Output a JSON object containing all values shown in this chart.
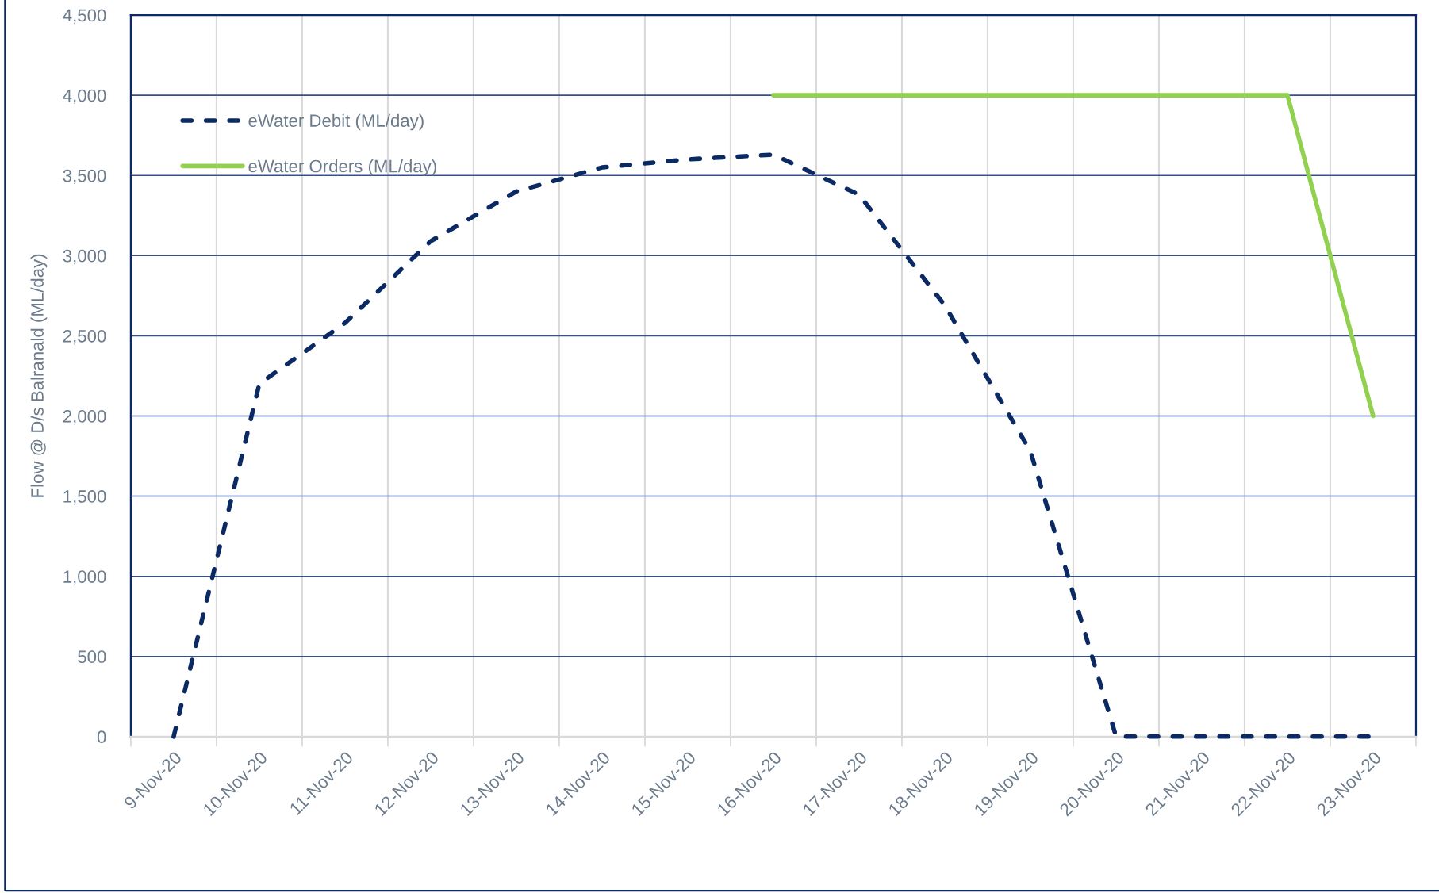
{
  "chart_data": {
    "type": "line",
    "ylabel": "Flow @ D/s Balranald (ML/day)",
    "categories": [
      "9-Nov-20",
      "10-Nov-20",
      "11-Nov-20",
      "12-Nov-20",
      "13-Nov-20",
      "14-Nov-20",
      "15-Nov-20",
      "16-Nov-20",
      "17-Nov-20",
      "18-Nov-20",
      "19-Nov-20",
      "20-Nov-20",
      "21-Nov-20",
      "22-Nov-20",
      "23-Nov-20"
    ],
    "series": [
      {
        "name": "eWater Debit (ML/day)",
        "color": "#0b2a63",
        "line_style": "dashed",
        "values": [
          0,
          2200,
          2580,
          3090,
          3400,
          3550,
          3600,
          3630,
          3380,
          2690,
          1780,
          0,
          0,
          0,
          0
        ]
      },
      {
        "name": "eWater Orders (ML/day)",
        "color": "#92d050",
        "line_style": "solid",
        "values": [
          null,
          null,
          null,
          null,
          null,
          null,
          null,
          4000,
          4000,
          4000,
          4000,
          4000,
          4000,
          4000,
          2000
        ]
      }
    ],
    "ylim": [
      0,
      4500
    ],
    "yticks": [
      0,
      500,
      {
        "value": 1000,
        "label": "1,000"
      },
      {
        "value": 1500,
        "label": "1,500"
      },
      {
        "value": 2000,
        "label": "2,000"
      },
      {
        "value": 2500,
        "label": "2,500"
      },
      {
        "value": 3000,
        "label": "3,000"
      },
      {
        "value": 3500,
        "label": "3,500"
      },
      {
        "value": 4000,
        "label": "4,000"
      },
      {
        "value": 4500,
        "label": "4,500"
      }
    ],
    "grid": true,
    "legend": "top left"
  }
}
